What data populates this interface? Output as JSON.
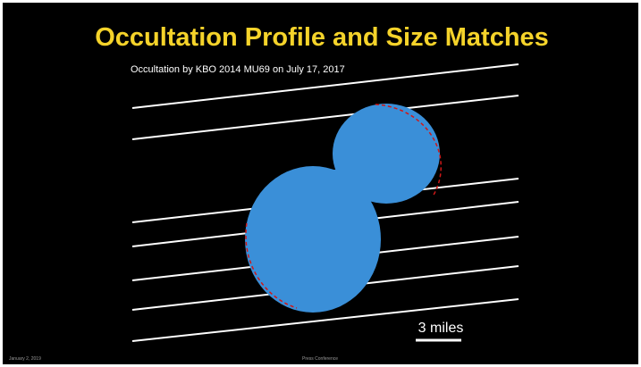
{
  "slide": {
    "title": "Occultation Profile and Size Matches",
    "subtitle": "Occultation by KBO 2014 MU69 on July 17, 2017",
    "scale_label": "3 miles",
    "footer_left": "January 2, 2019",
    "footer_center": "Press Conference"
  }
}
